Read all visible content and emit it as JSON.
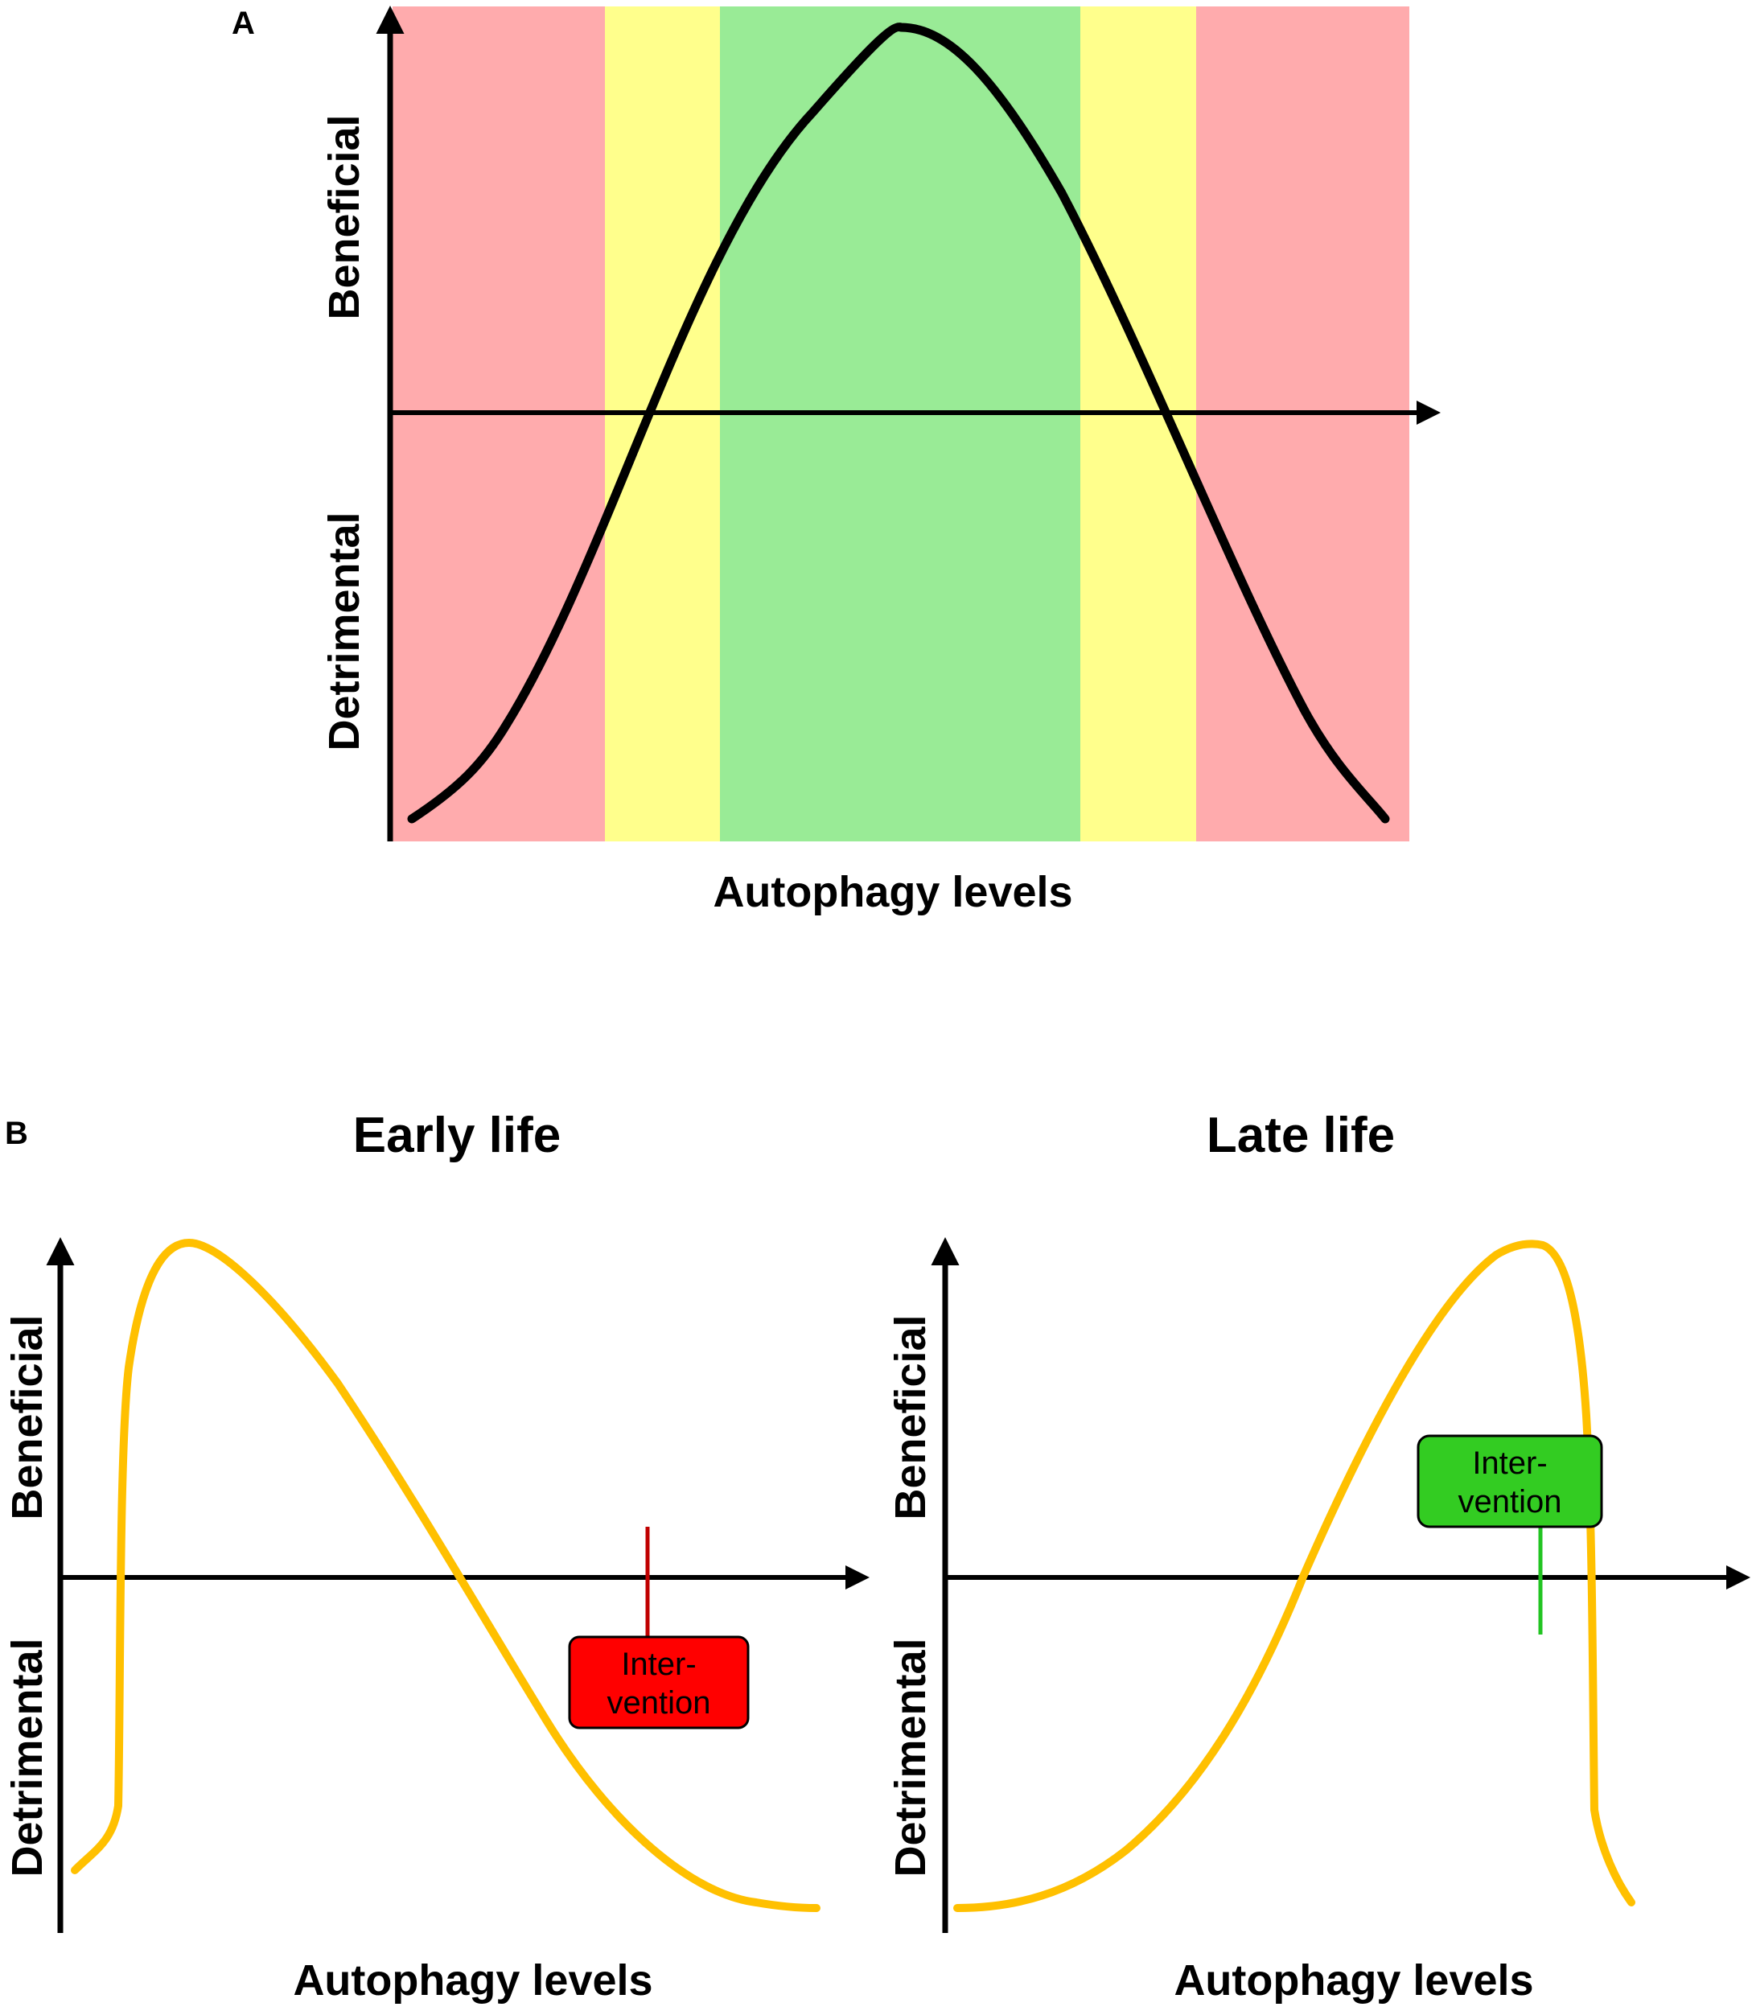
{
  "panel_a": {
    "letter": "A",
    "y_label_top": "Beneficial",
    "y_label_bottom": "Detrimental",
    "x_label": "Autophagy levels",
    "zone_colors": {
      "red": "#ffabad",
      "yellow": "#ffff8c",
      "green": "#99eb96"
    },
    "curve_color": "#000000"
  },
  "panel_b": {
    "letter": "B",
    "early": {
      "title": "Early life",
      "y_label_top": "Beneficial",
      "y_label_bottom": "Detrimental",
      "x_label": "Autophagy levels",
      "intervention_line1": "Inter-",
      "intervention_line2": "vention",
      "intervention_color": "#ff0000",
      "marker_color": "#c00000"
    },
    "late": {
      "title": "Late life",
      "y_label_top": "Beneficial",
      "y_label_bottom": "Detrimental",
      "x_label": "Autophagy levels",
      "intervention_line1": "Inter-",
      "intervention_line2": "vention",
      "intervention_color": "#33cc22",
      "marker_color": "#22c422"
    },
    "curve_color": "#ffc000"
  }
}
